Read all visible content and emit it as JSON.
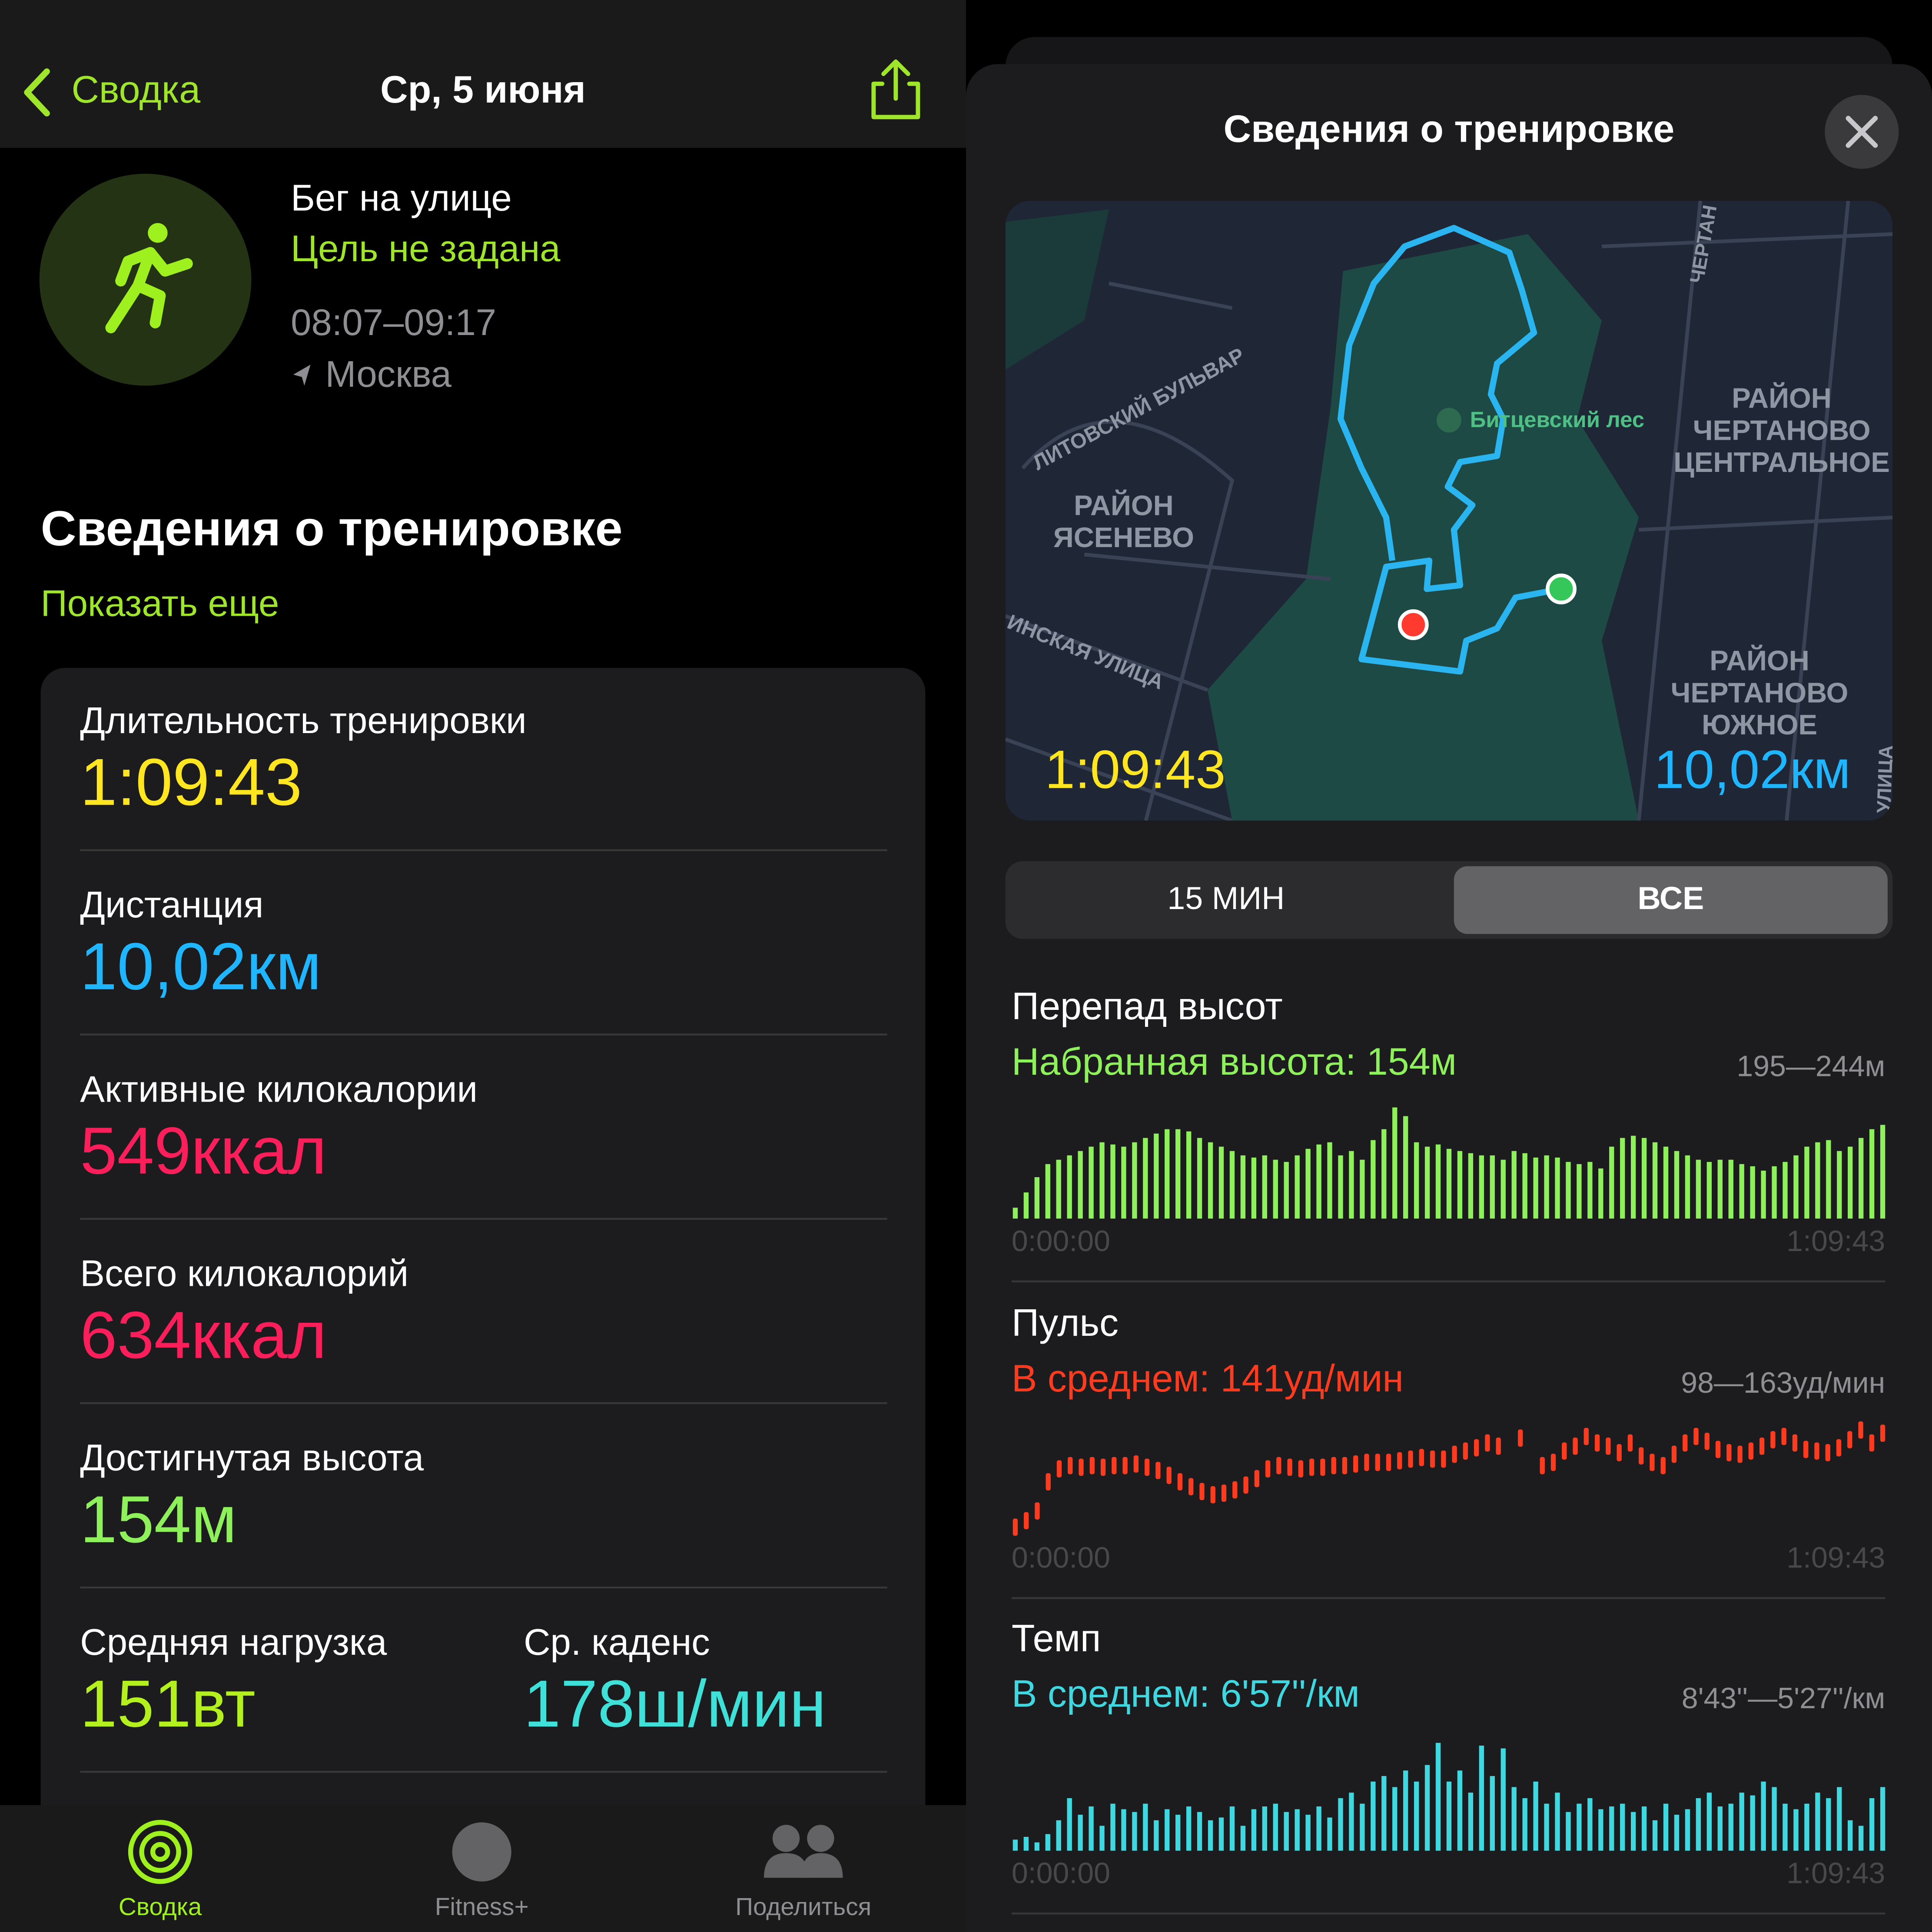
{
  "left": {
    "nav": {
      "back": "Сводка",
      "title": "Ср, 5 июня"
    },
    "workout": {
      "type": "Бег на улице",
      "goal": "Цель не задана",
      "time": "08:07–09:17",
      "location": "Москва"
    },
    "section": {
      "title": "Сведения о тренировке",
      "more": "Показать еще"
    },
    "metrics": [
      {
        "label": "Длительность тренировки",
        "value": "1:09:43",
        "color": "#ffe620"
      },
      {
        "label": "Дистанция",
        "value": "10,02км",
        "color": "#1fb6ff"
      },
      {
        "label": "Активные килокалории",
        "value": "549ккал",
        "color": "#fa1f5a"
      },
      {
        "label": "Всего килокалорий",
        "value": "634ккал",
        "color": "#fa1f5a"
      },
      {
        "label": "Достигнутая высота",
        "value": "154м",
        "color": "#8ef05a"
      },
      {
        "label": "Средняя нагрузка",
        "value": "151вт",
        "color": "#b4f01e"
      },
      {
        "label": "Ср. каденс",
        "value": "178ш/мин",
        "color": "#3fe0d8"
      }
    ],
    "tabs": [
      "Сводка",
      "Fitness+",
      "Поделиться"
    ]
  },
  "right": {
    "title": "Сведения о тренировке",
    "map": {
      "place": "Битцевский лес",
      "districts": [
        [
          "РАЙОН",
          "ЧЕРТАНОВО",
          "ЦЕНТРАЛЬНОЕ"
        ],
        [
          "РАЙОН",
          "ЯСЕНЕВО"
        ],
        [
          "РАЙОН",
          "ЧЕРТАНОВО",
          "ЮЖНОЕ"
        ]
      ],
      "streets": [
        "ЛИТОВСКИЙ БУЛЬВАР",
        "ИНСКАЯ УЛИЦА",
        "ЧЕРТАН",
        "УЛИЦА"
      ],
      "duration": "1:09:43",
      "distance": "10,02км"
    },
    "segments": [
      "15 МИН",
      "ВСЕ"
    ],
    "charts": [
      {
        "type": "bar",
        "title": "Перепад высот",
        "summary": "Набранная высота: 154м",
        "range": "195—244м",
        "start": "0:00:00",
        "end": "1:09:43",
        "color": "#8ef05a",
        "ylim": [
          193,
          245
        ],
        "values": [
          198,
          205,
          212,
          218,
          220,
          222,
          224,
          226,
          228,
          227,
          226,
          228,
          230,
          232,
          234,
          234,
          233,
          230,
          228,
          226,
          224,
          222,
          221,
          222,
          220,
          219,
          222,
          225,
          227,
          228,
          222,
          224,
          220,
          229,
          234,
          244,
          240,
          228,
          226,
          227,
          225,
          224,
          223,
          222,
          222,
          220,
          224,
          223,
          221,
          222,
          221,
          219,
          218,
          219,
          216,
          226,
          230,
          231,
          230,
          228,
          226,
          224,
          222,
          220,
          219,
          220,
          220,
          218,
          217,
          215,
          217,
          219,
          222,
          226,
          228,
          229,
          224,
          226,
          230,
          234,
          236
        ]
      },
      {
        "type": "tick",
        "title": "Пульс",
        "summary": "В среднем: 141уд/мин",
        "range": "98—163уд/мин",
        "start": "0:00:00",
        "end": "1:09:43",
        "color": "#ff3b1f",
        "ylim": [
          95,
          165
        ],
        "values": [
          100,
          104,
          110,
          128,
          136,
          138,
          137,
          138,
          137,
          138,
          138,
          139,
          137,
          135,
          132,
          128,
          125,
          122,
          120,
          121,
          123,
          126,
          130,
          136,
          138,
          137,
          136,
          137,
          137,
          138,
          138,
          139,
          140,
          140,
          140,
          141,
          142,
          143,
          142,
          142,
          145,
          147,
          149,
          152,
          150,
          null,
          155,
          null,
          138,
          140,
          147,
          150,
          156,
          152,
          150,
          146,
          152,
          144,
          140,
          138,
          145,
          152,
          156,
          153,
          148,
          146,
          145,
          147,
          150,
          154,
          156,
          152,
          148,
          147,
          146,
          149,
          154,
          160,
          152,
          158
        ]
      },
      {
        "type": "bar",
        "title": "Темп",
        "summary": "В среднем: 6'57''/км",
        "range": "8'43''—5'27''/км",
        "start": "0:00:00",
        "end": "1:09:43",
        "color": "#3fd8e0",
        "ylim": [
          525,
          320
        ],
        "values": [
          505,
          500,
          510,
          495,
          470,
          430,
          460,
          445,
          480,
          440,
          450,
          455,
          440,
          470,
          450,
          460,
          445,
          455,
          470,
          465,
          445,
          480,
          450,
          445,
          440,
          455,
          450,
          460,
          445,
          465,
          430,
          420,
          440,
          400,
          390,
          410,
          380,
          400,
          370,
          330,
          400,
          380,
          420,
          335,
          390,
          340,
          410,
          430,
          400,
          440,
          420,
          455,
          440,
          430,
          450,
          445,
          440,
          455,
          445,
          470,
          440,
          460,
          450,
          430,
          420,
          445,
          440,
          420,
          425,
          400,
          410,
          440,
          450,
          440,
          420,
          430,
          410,
          470,
          480,
          430,
          410
        ]
      }
    ]
  }
}
